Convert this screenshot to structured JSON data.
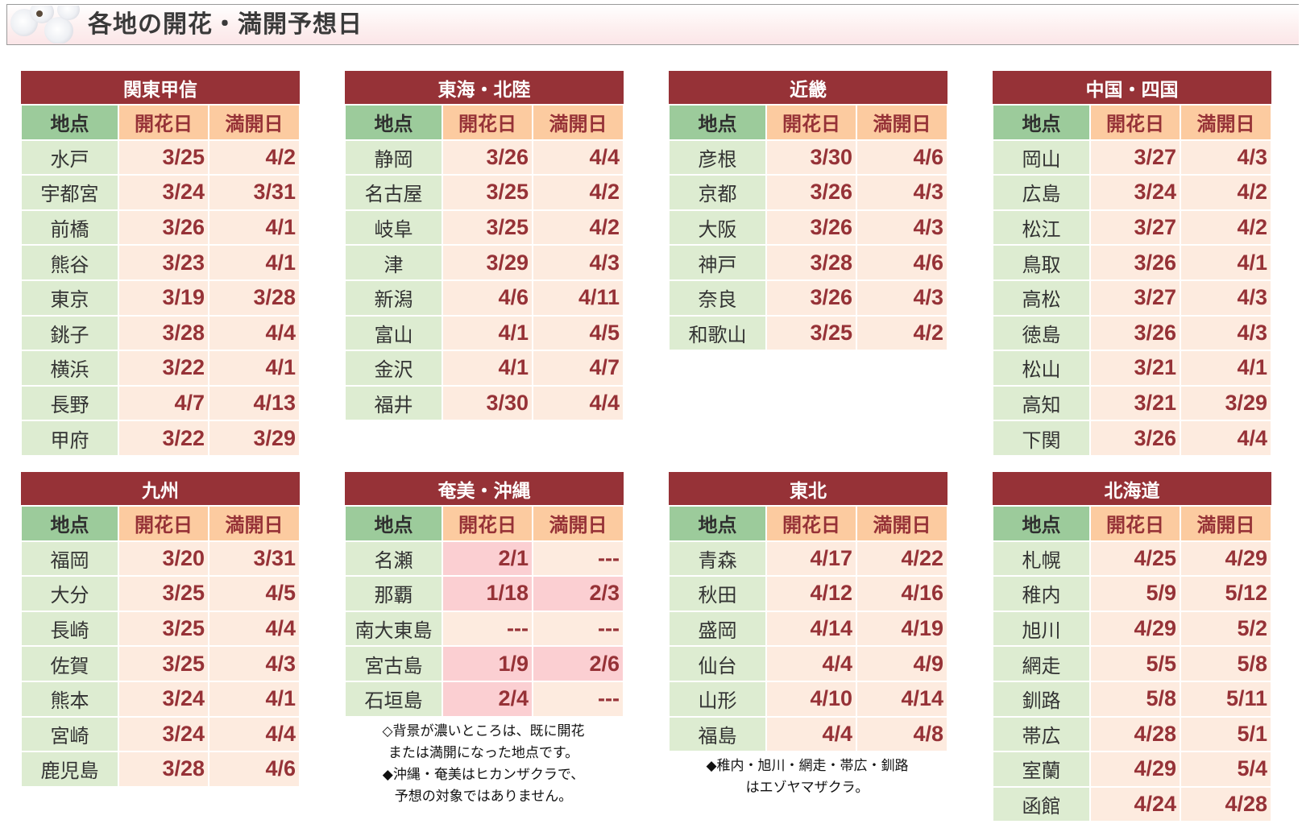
{
  "page": {
    "title": "各地の開花・満開予想日"
  },
  "columns": {
    "location": "地点",
    "bloom": "開花日",
    "full": "満開日"
  },
  "colors": {
    "title_bg": "#963237",
    "loc_header_bg": "#9ccb9b",
    "date_header_bg": "#fccba0",
    "loc_cell_bg": "#ddecd1",
    "date_cell_bg": "#fdebdf",
    "already_bg": "#fbcfd2",
    "date_text": "#963237"
  },
  "regions": [
    {
      "name": "関東甲信",
      "rows": [
        {
          "loc": "水戸",
          "bloom": "3/25",
          "full": "4/2"
        },
        {
          "loc": "宇都宮",
          "bloom": "3/24",
          "full": "3/31"
        },
        {
          "loc": "前橋",
          "bloom": "3/26",
          "full": "4/1"
        },
        {
          "loc": "熊谷",
          "bloom": "3/23",
          "full": "4/1"
        },
        {
          "loc": "東京",
          "bloom": "3/19",
          "full": "3/28"
        },
        {
          "loc": "銚子",
          "bloom": "3/28",
          "full": "4/4"
        },
        {
          "loc": "横浜",
          "bloom": "3/22",
          "full": "4/1"
        },
        {
          "loc": "長野",
          "bloom": "4/7",
          "full": "4/13"
        },
        {
          "loc": "甲府",
          "bloom": "3/22",
          "full": "3/29"
        }
      ]
    },
    {
      "name": "東海・北陸",
      "rows": [
        {
          "loc": "静岡",
          "bloom": "3/26",
          "full": "4/4"
        },
        {
          "loc": "名古屋",
          "bloom": "3/25",
          "full": "4/2"
        },
        {
          "loc": "岐阜",
          "bloom": "3/25",
          "full": "4/2"
        },
        {
          "loc": "津",
          "bloom": "3/29",
          "full": "4/3"
        },
        {
          "loc": "新潟",
          "bloom": "4/6",
          "full": "4/11"
        },
        {
          "loc": "富山",
          "bloom": "4/1",
          "full": "4/5"
        },
        {
          "loc": "金沢",
          "bloom": "4/1",
          "full": "4/7"
        },
        {
          "loc": "福井",
          "bloom": "3/30",
          "full": "4/4"
        }
      ]
    },
    {
      "name": "近畿",
      "rows": [
        {
          "loc": "彦根",
          "bloom": "3/30",
          "full": "4/6"
        },
        {
          "loc": "京都",
          "bloom": "3/26",
          "full": "4/3"
        },
        {
          "loc": "大阪",
          "bloom": "3/26",
          "full": "4/3"
        },
        {
          "loc": "神戸",
          "bloom": "3/28",
          "full": "4/6"
        },
        {
          "loc": "奈良",
          "bloom": "3/26",
          "full": "4/3"
        },
        {
          "loc": "和歌山",
          "bloom": "3/25",
          "full": "4/2"
        }
      ]
    },
    {
      "name": "中国・四国",
      "rows": [
        {
          "loc": "岡山",
          "bloom": "3/27",
          "full": "4/3"
        },
        {
          "loc": "広島",
          "bloom": "3/24",
          "full": "4/2"
        },
        {
          "loc": "松江",
          "bloom": "3/27",
          "full": "4/2"
        },
        {
          "loc": "鳥取",
          "bloom": "3/26",
          "full": "4/1"
        },
        {
          "loc": "高松",
          "bloom": "3/27",
          "full": "4/3"
        },
        {
          "loc": "徳島",
          "bloom": "3/26",
          "full": "4/3"
        },
        {
          "loc": "松山",
          "bloom": "3/21",
          "full": "4/1"
        },
        {
          "loc": "高知",
          "bloom": "3/21",
          "full": "3/29"
        },
        {
          "loc": "下関",
          "bloom": "3/26",
          "full": "4/4"
        }
      ]
    },
    {
      "name": "九州",
      "rows": [
        {
          "loc": "福岡",
          "bloom": "3/20",
          "full": "3/31"
        },
        {
          "loc": "大分",
          "bloom": "3/25",
          "full": "4/5"
        },
        {
          "loc": "長崎",
          "bloom": "3/25",
          "full": "4/4"
        },
        {
          "loc": "佐賀",
          "bloom": "3/25",
          "full": "4/3"
        },
        {
          "loc": "熊本",
          "bloom": "3/24",
          "full": "4/1"
        },
        {
          "loc": "宮崎",
          "bloom": "3/24",
          "full": "4/4"
        },
        {
          "loc": "鹿児島",
          "bloom": "3/28",
          "full": "4/6"
        }
      ]
    },
    {
      "name": "奄美・沖縄",
      "rows": [
        {
          "loc": "名瀬",
          "bloom": "2/1",
          "full": "---",
          "bloom_done": true,
          "full_done": false
        },
        {
          "loc": "那覇",
          "bloom": "1/18",
          "full": "2/3",
          "bloom_done": true,
          "full_done": true
        },
        {
          "loc": "南大東島",
          "bloom": "---",
          "full": "---",
          "bloom_done": false,
          "full_done": false
        },
        {
          "loc": "宮古島",
          "bloom": "1/9",
          "full": "2/6",
          "bloom_done": true,
          "full_done": true
        },
        {
          "loc": "石垣島",
          "bloom": "2/4",
          "full": "---",
          "bloom_done": true,
          "full_done": false
        }
      ],
      "notes": [
        "◇背景が濃いところは、既に開花",
        "または満開になった地点です。",
        "◆沖縄・奄美はヒカンザクラで、",
        "予想の対象ではありません。"
      ]
    },
    {
      "name": "東北",
      "rows": [
        {
          "loc": "青森",
          "bloom": "4/17",
          "full": "4/22"
        },
        {
          "loc": "秋田",
          "bloom": "4/12",
          "full": "4/16"
        },
        {
          "loc": "盛岡",
          "bloom": "4/14",
          "full": "4/19"
        },
        {
          "loc": "仙台",
          "bloom": "4/4",
          "full": "4/9"
        },
        {
          "loc": "山形",
          "bloom": "4/10",
          "full": "4/14"
        },
        {
          "loc": "福島",
          "bloom": "4/4",
          "full": "4/8"
        }
      ],
      "notes": [
        "◆稚内・旭川・網走・帯広・釧路",
        "はエゾヤマザクラ。"
      ]
    },
    {
      "name": "北海道",
      "rows": [
        {
          "loc": "札幌",
          "bloom": "4/25",
          "full": "4/29"
        },
        {
          "loc": "稚内",
          "bloom": "5/9",
          "full": "5/12"
        },
        {
          "loc": "旭川",
          "bloom": "4/29",
          "full": "5/2"
        },
        {
          "loc": "網走",
          "bloom": "5/5",
          "full": "5/8"
        },
        {
          "loc": "釧路",
          "bloom": "5/8",
          "full": "5/11"
        },
        {
          "loc": "帯広",
          "bloom": "4/28",
          "full": "5/1"
        },
        {
          "loc": "室蘭",
          "bloom": "4/29",
          "full": "5/4"
        },
        {
          "loc": "函館",
          "bloom": "4/24",
          "full": "4/28"
        }
      ]
    }
  ]
}
